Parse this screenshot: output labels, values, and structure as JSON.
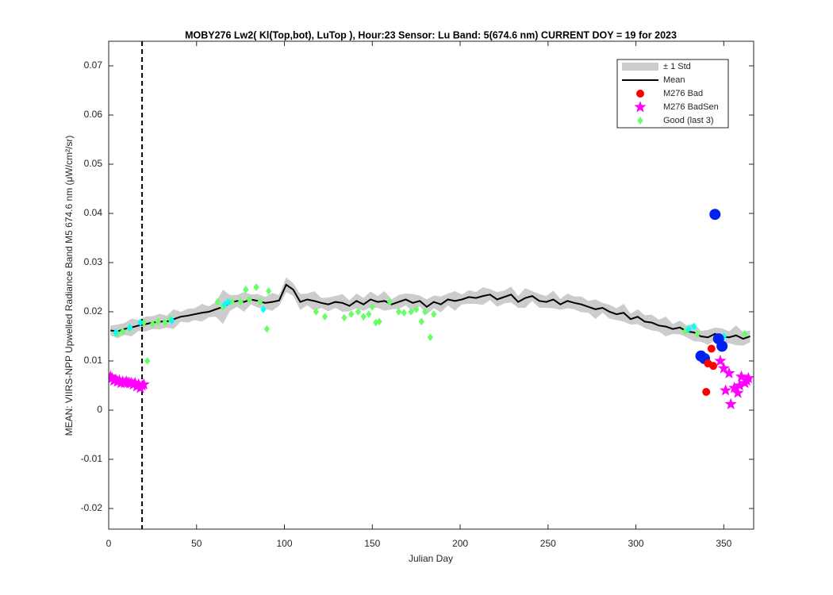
{
  "chart_data": {
    "type": "line",
    "title": "MOBY276   Lw2( Kl(Top,bot), LuTop ),   Hour:23 Sensor: Lu Band: 5(674.6 nm)   CURRENT DOY = 19 for 2023",
    "xlabel": "Julian Day",
    "ylabel": "MEAN: VIIRS-NPP Upwelled Radiance Band M5 674.6 nm (μW/cm²/sr)",
    "xlim": [
      0,
      367
    ],
    "ylim": [
      -0.0242,
      0.075
    ],
    "xticks": [
      0,
      50,
      100,
      150,
      200,
      250,
      300,
      350
    ],
    "yticks": [
      -0.02,
      -0.01,
      0,
      0.01,
      0.02,
      0.03,
      0.04,
      0.05,
      0.06,
      0.07
    ],
    "current_doy": 19,
    "legend": "northeast",
    "x": [
      1,
      5,
      9,
      13,
      17,
      21,
      25,
      29,
      33,
      37,
      41,
      45,
      49,
      53,
      57,
      61,
      65,
      69,
      73,
      77,
      81,
      85,
      89,
      93,
      97,
      101,
      105,
      109,
      113,
      117,
      121,
      125,
      129,
      133,
      137,
      141,
      145,
      149,
      153,
      157,
      161,
      165,
      169,
      173,
      177,
      181,
      185,
      189,
      193,
      197,
      201,
      205,
      209,
      213,
      217,
      221,
      225,
      229,
      233,
      237,
      241,
      245,
      249,
      253,
      257,
      261,
      265,
      269,
      273,
      277,
      281,
      285,
      289,
      293,
      297,
      301,
      305,
      309,
      313,
      317,
      321,
      325,
      329,
      333,
      337,
      341,
      345,
      349,
      353,
      357,
      361,
      365
    ],
    "std": {
      "name": "± 1 Std",
      "color": "#cccccc",
      "values": [
        0.001,
        0.0014,
        0.0012,
        0.0018,
        0.0011,
        0.0015,
        0.0013,
        0.0016,
        0.0012,
        0.002,
        0.001,
        0.0014,
        0.0012,
        0.0018,
        0.0011,
        0.0015,
        0.0035,
        0.0016,
        0.0012,
        0.002,
        0.001,
        0.0014,
        0.0012,
        0.0018,
        0.0011,
        0.0015,
        0.0013,
        0.0016,
        0.0012,
        0.002,
        0.001,
        0.0014,
        0.0012,
        0.0018,
        0.0011,
        0.0015,
        0.0013,
        0.0016,
        0.0012,
        0.002,
        0.001,
        0.0014,
        0.0012,
        0.0018,
        0.0011,
        0.0015,
        0.0013,
        0.0016,
        0.0012,
        0.002,
        0.001,
        0.0014,
        0.0012,
        0.0018,
        0.0011,
        0.0015,
        0.0013,
        0.0016,
        0.0012,
        0.002,
        0.001,
        0.0014,
        0.0012,
        0.0018,
        0.0011,
        0.0015,
        0.0013,
        0.0016,
        0.0012,
        0.002,
        0.001,
        0.0014,
        0.0012,
        0.0018,
        0.0011,
        0.0015,
        0.0013,
        0.0016,
        0.0012,
        0.002,
        0.001,
        0.0014,
        0.0012,
        0.0018,
        0.0011,
        0.0015,
        0.0013,
        0.0016,
        0.0012,
        0.002,
        0.0014,
        0.0012
      ]
    },
    "mean": {
      "name": "Mean",
      "color": "#000000",
      "values": [
        0.0162,
        0.016,
        0.0165,
        0.0168,
        0.0172,
        0.0175,
        0.0178,
        0.018,
        0.018,
        0.0185,
        0.019,
        0.0192,
        0.0195,
        0.0198,
        0.02,
        0.0205,
        0.021,
        0.0218,
        0.0222,
        0.022,
        0.0225,
        0.0222,
        0.0218,
        0.022,
        0.0223,
        0.0255,
        0.0245,
        0.022,
        0.0225,
        0.0222,
        0.0218,
        0.0215,
        0.022,
        0.0218,
        0.0212,
        0.0222,
        0.0215,
        0.0225,
        0.022,
        0.0222,
        0.0215,
        0.022,
        0.0225,
        0.0218,
        0.0222,
        0.021,
        0.022,
        0.0215,
        0.0225,
        0.0222,
        0.0225,
        0.023,
        0.0228,
        0.0232,
        0.0235,
        0.0225,
        0.023,
        0.0235,
        0.022,
        0.0228,
        0.0232,
        0.0222,
        0.022,
        0.0225,
        0.0215,
        0.0222,
        0.0218,
        0.0215,
        0.021,
        0.0205,
        0.0208,
        0.02,
        0.0195,
        0.0198,
        0.0185,
        0.019,
        0.018,
        0.0178,
        0.0172,
        0.017,
        0.0165,
        0.0168,
        0.016,
        0.0158,
        0.015,
        0.0148,
        0.0155,
        0.015,
        0.0148,
        0.0152,
        0.0145,
        0.015
      ]
    },
    "series": [
      {
        "name": "Good (last 3)",
        "color": "#66ff66",
        "marker": "diamond",
        "x": [
          5,
          8,
          12,
          20,
          22,
          25,
          28,
          32,
          35,
          62,
          65,
          70,
          75,
          78,
          80,
          84,
          86,
          90,
          91,
          118,
          123,
          134,
          138,
          142,
          145,
          148,
          150,
          152,
          154,
          160,
          165,
          168,
          172,
          175,
          178,
          180,
          183,
          185,
          328,
          335,
          362
        ],
        "values": [
          0.0155,
          0.016,
          0.0165,
          0.0178,
          0.01,
          0.0175,
          0.018,
          0.0178,
          0.0185,
          0.022,
          0.021,
          0.022,
          0.022,
          0.0245,
          0.0225,
          0.025,
          0.022,
          0.0165,
          0.0242,
          0.02,
          0.019,
          0.0188,
          0.0195,
          0.02,
          0.019,
          0.0195,
          0.021,
          0.0178,
          0.018,
          0.022,
          0.02,
          0.0198,
          0.02,
          0.0205,
          0.018,
          0.02,
          0.0148,
          0.0195,
          0.016,
          0.0155,
          0.0155
        ]
      },
      {
        "color": "#00ffff",
        "marker": "diamond",
        "x": [
          4,
          12,
          18,
          36,
          66,
          68,
          88,
          330,
          333,
          350
        ],
        "values": [
          0.0158,
          0.0168,
          0.0178,
          0.0182,
          0.0215,
          0.022,
          0.0205,
          0.0165,
          0.017,
          0.015
        ]
      },
      {
        "color": "#0022ee",
        "marker": "big-dot",
        "x": [
          337,
          339,
          345,
          347,
          349
        ],
        "values": [
          0.011,
          0.0105,
          0.0398,
          0.0145,
          0.013
        ]
      },
      {
        "name": "M276 Bad",
        "color": "#ff0000",
        "marker": "dot",
        "x": [
          340,
          341,
          343,
          344
        ],
        "values": [
          0.0037,
          0.0095,
          0.0125,
          0.009
        ]
      },
      {
        "name": "M276 BadSen",
        "color": "#ff00ff",
        "marker": "star",
        "x": [
          1,
          2,
          3,
          4,
          5,
          6,
          7,
          8,
          9,
          10,
          11,
          12,
          13,
          14,
          15,
          16,
          17,
          18,
          19,
          20,
          348,
          350,
          351,
          353,
          354,
          356,
          358,
          359,
          360,
          362,
          363,
          364
        ],
        "values": [
          0.0068,
          0.0065,
          0.006,
          0.0062,
          0.0058,
          0.006,
          0.0055,
          0.0058,
          0.0055,
          0.0058,
          0.0056,
          0.0055,
          0.0055,
          0.0052,
          0.0055,
          0.0048,
          0.0052,
          0.0045,
          0.005,
          0.0052,
          0.01,
          0.0085,
          0.004,
          0.0075,
          0.0012,
          0.0045,
          0.0035,
          0.005,
          0.0068,
          0.0055,
          0.006,
          0.0065
        ]
      }
    ]
  }
}
